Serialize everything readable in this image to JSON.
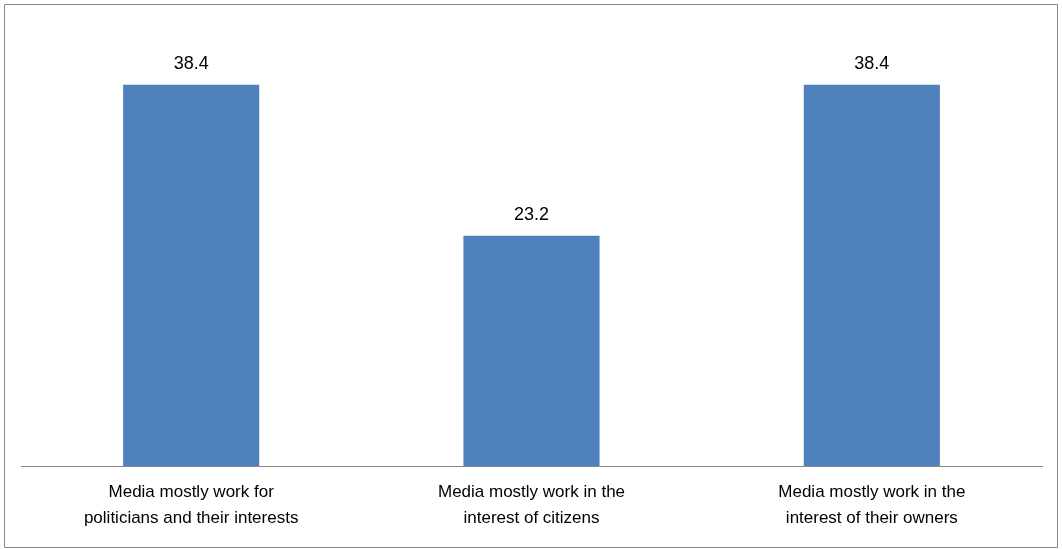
{
  "chart_data": {
    "type": "bar",
    "categories": [
      "Media mostly work for politicians and their interests",
      "Media mostly work in the interest of citizens",
      "Media mostly work in the interest of their owners"
    ],
    "values": [
      38.4,
      23.2,
      38.4
    ],
    "color": "#4f81bd",
    "data_labels": true,
    "tick_labels": "x"
  }
}
